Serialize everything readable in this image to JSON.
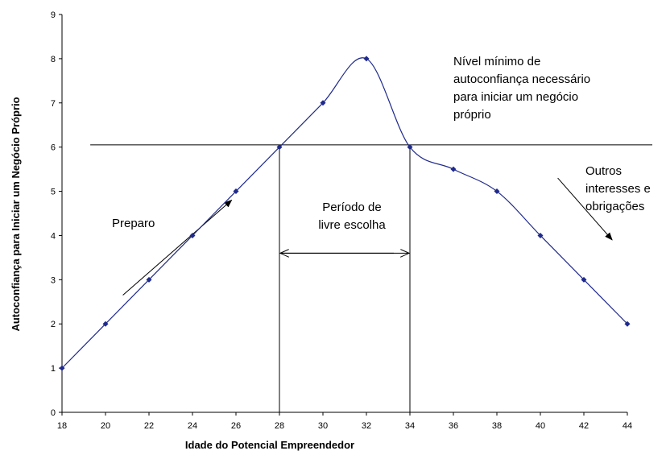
{
  "chart_data": {
    "type": "line",
    "xlabel": "Idade do Potencial Empreendedor",
    "ylabel": "Autoconfiança para Iniciar um Negócio Próprio",
    "xlim": [
      18,
      44
    ],
    "ylim": [
      0,
      9
    ],
    "x_ticks": [
      "18",
      "20",
      "22",
      "24",
      "26",
      "28",
      "30",
      "32",
      "34",
      "36",
      "38",
      "40",
      "42",
      "44"
    ],
    "y_ticks": [
      "0",
      "1",
      "2",
      "3",
      "4",
      "5",
      "6",
      "7",
      "8",
      "9"
    ],
    "grid": false,
    "legend": "none",
    "line_color": "#1f2a8c",
    "marker_color": "#1f2a8c",
    "series": [
      {
        "x": [
          18,
          20,
          22,
          24,
          26,
          28,
          30,
          32,
          34,
          36,
          38,
          40,
          42,
          44
        ],
        "values": [
          1,
          2,
          3,
          4,
          5,
          6,
          7,
          8,
          6,
          5.5,
          5,
          4,
          3,
          2
        ]
      }
    ],
    "threshold": {
      "y": 6.05,
      "x_from": 19.3,
      "x_to": 46.2
    },
    "vlines": [
      28,
      34
    ],
    "range_arrow": {
      "x_from": 28,
      "x_to": 34,
      "y": 3.6
    },
    "annotations": {
      "threshold_label": [
        "Nível mínimo de",
        "autoconfiança necessário",
        "para iniciar um negócio",
        "próprio"
      ],
      "period_label": [
        "Período  de",
        "livre escolha"
      ],
      "prep_label": "Preparo",
      "other_label": [
        "Outros",
        "interesses e",
        "obrigações"
      ]
    },
    "prep_arrow": {
      "x_from": 20.8,
      "y_from": 2.65,
      "x_to": 25.8,
      "y_to": 4.8
    },
    "other_arrow": {
      "x_from": 40.8,
      "y_from": 5.3,
      "x_to": 43.3,
      "y_to": 3.9
    }
  }
}
